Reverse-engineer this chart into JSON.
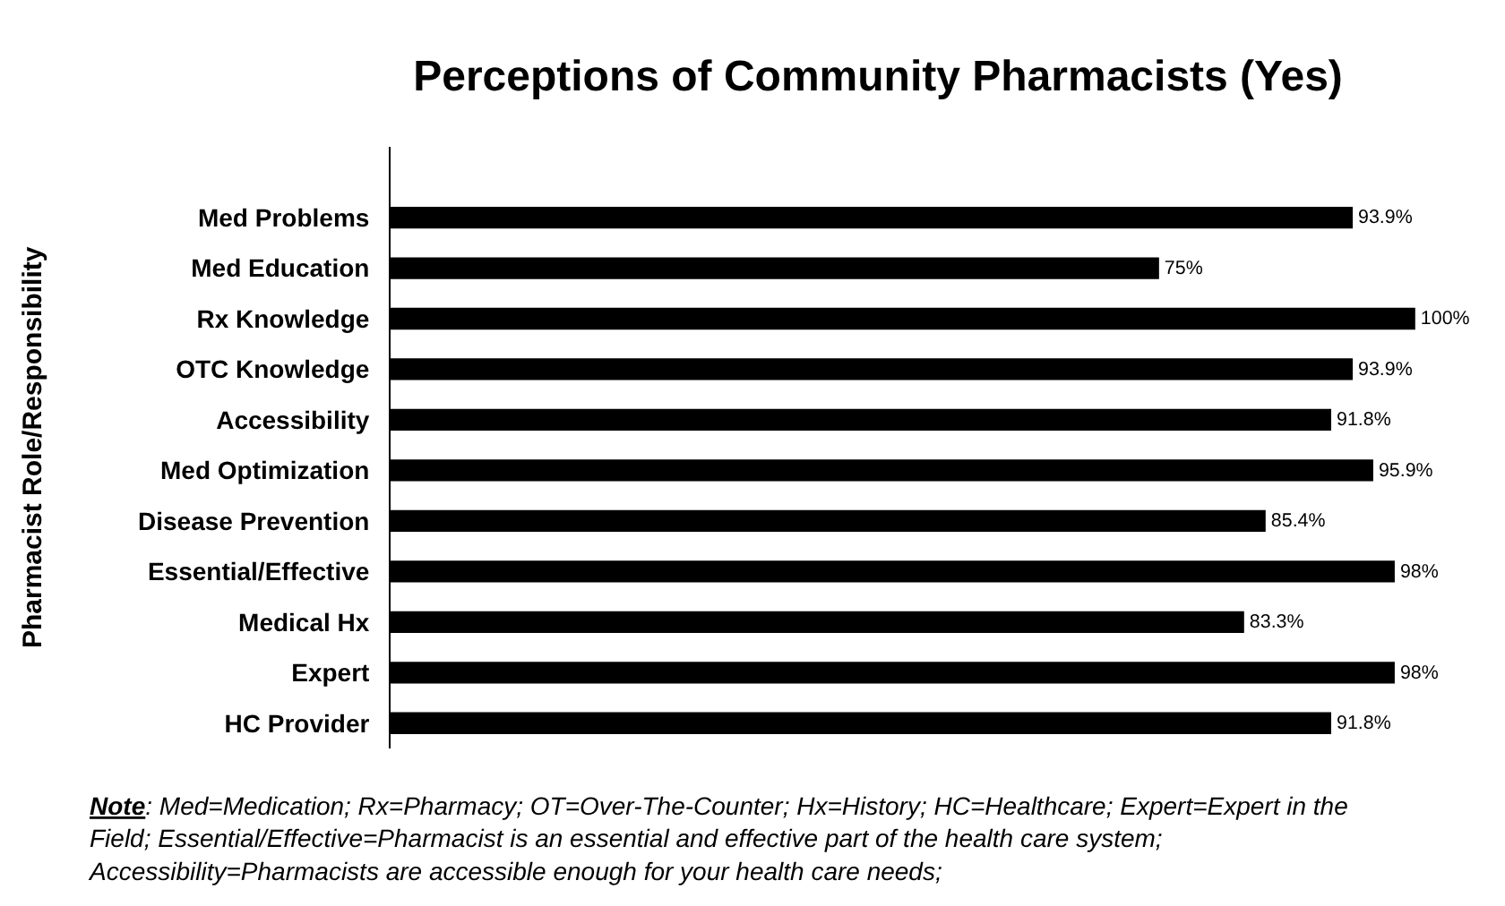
{
  "chart_data": {
    "type": "bar",
    "orientation": "horizontal",
    "title": "Perceptions of Community Pharmacists (Yes)",
    "ylabel": "Pharmacist Role/Responsibility",
    "categories": [
      "Med Problems",
      "Med Education",
      "Rx Knowledge",
      "OTC Knowledge",
      "Accessibility",
      "Med Optimization",
      "Disease Prevention",
      "Essential/Effective",
      "Medical Hx",
      "Expert",
      "HC Provider"
    ],
    "values": [
      93.9,
      75,
      100,
      93.9,
      91.8,
      95.9,
      85.4,
      98,
      83.3,
      98,
      91.8
    ],
    "value_labels": [
      "93.9%",
      "75%",
      "100%",
      "93.9%",
      "91.8%",
      "95.9%",
      "85.4%",
      "98%",
      "83.3%",
      "98%",
      "91.8%"
    ],
    "color": "#000000",
    "tick_labels": "y",
    "legend": false,
    "annotations": [
      "Note: Med=Medication; Rx=Pharmacy; OT=Over-The-Counter; Hx=History; HC=Healthcare; Expert=Expert in the Field; Essential/Effective=Pharmacist is an essential and effective part of the health care system; Accessibility=Pharmacists are accessible enough for your health care needs;"
    ]
  }
}
